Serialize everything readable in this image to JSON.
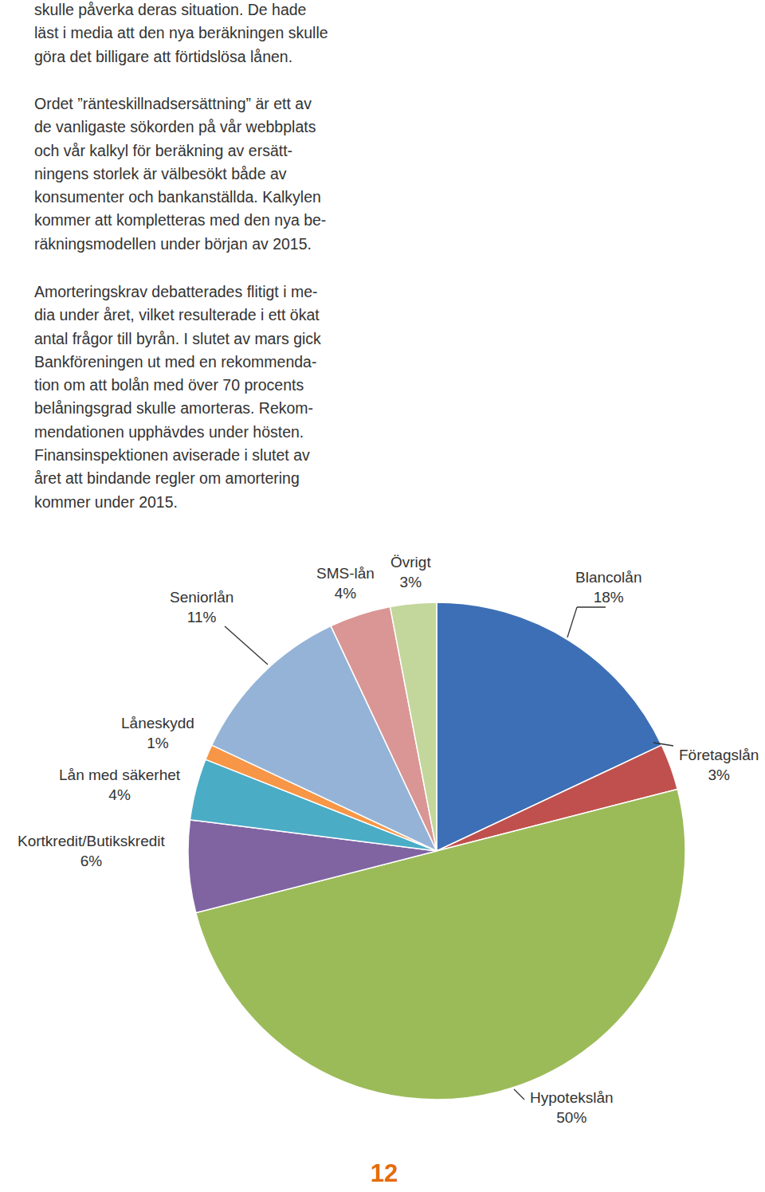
{
  "paragraphs": [
    [
      "skulle påverka deras situation. De hade",
      "läst i media att den nya beräkningen skulle",
      "göra det billigare att förtidslösa lånen."
    ],
    [
      "Ordet ”ränteskillnadsersättning” är ett av",
      "de vanligaste sökorden på vår webbplats",
      "och vår kalkyl för beräkning av ersätt-",
      "ningens storlek är välbesökt både av",
      "konsumenter och bankanställda. Kalkylen",
      "kommer att kompletteras med den nya be-",
      "räkningsmodellen under början av 2015."
    ],
    [
      "Amorteringskrav debatterades flitigt i me-",
      "dia under året, vilket resulterade i ett ökat",
      "antal frågor till byrån. I slutet av mars gick",
      "Bankföreningen ut med en rekommenda-",
      "tion om att bolån med över 70 procents",
      "belåningsgrad skulle amorteras. Rekom-",
      "mendationen upphävdes under hösten.",
      "Finansinspektionen aviserade i slutet av",
      "året att bindande regler om amortering",
      "kommer under 2015."
    ]
  ],
  "chart_data": {
    "type": "pie",
    "categories": [
      "Blancolån",
      "Företagslån",
      "Hypotekslån",
      "Kortkredit/Butikskredit",
      "Lån med säkerhet",
      "Låneskydd",
      "Seniorlån",
      "SMS-lån",
      "Övrigt"
    ],
    "values": [
      18,
      3,
      50,
      6,
      4,
      1,
      11,
      4,
      3
    ],
    "value_labels": [
      "18%",
      "3%",
      "50%",
      "6%",
      "4%",
      "1%",
      "11%",
      "4%",
      "3%"
    ],
    "colors": [
      "#3D6FB6",
      "#C0504D",
      "#9BBB59",
      "#8064A2",
      "#4BACC6",
      "#F79646",
      "#95B3D7",
      "#D99694",
      "#C3D69B"
    ]
  },
  "page_number": 12
}
